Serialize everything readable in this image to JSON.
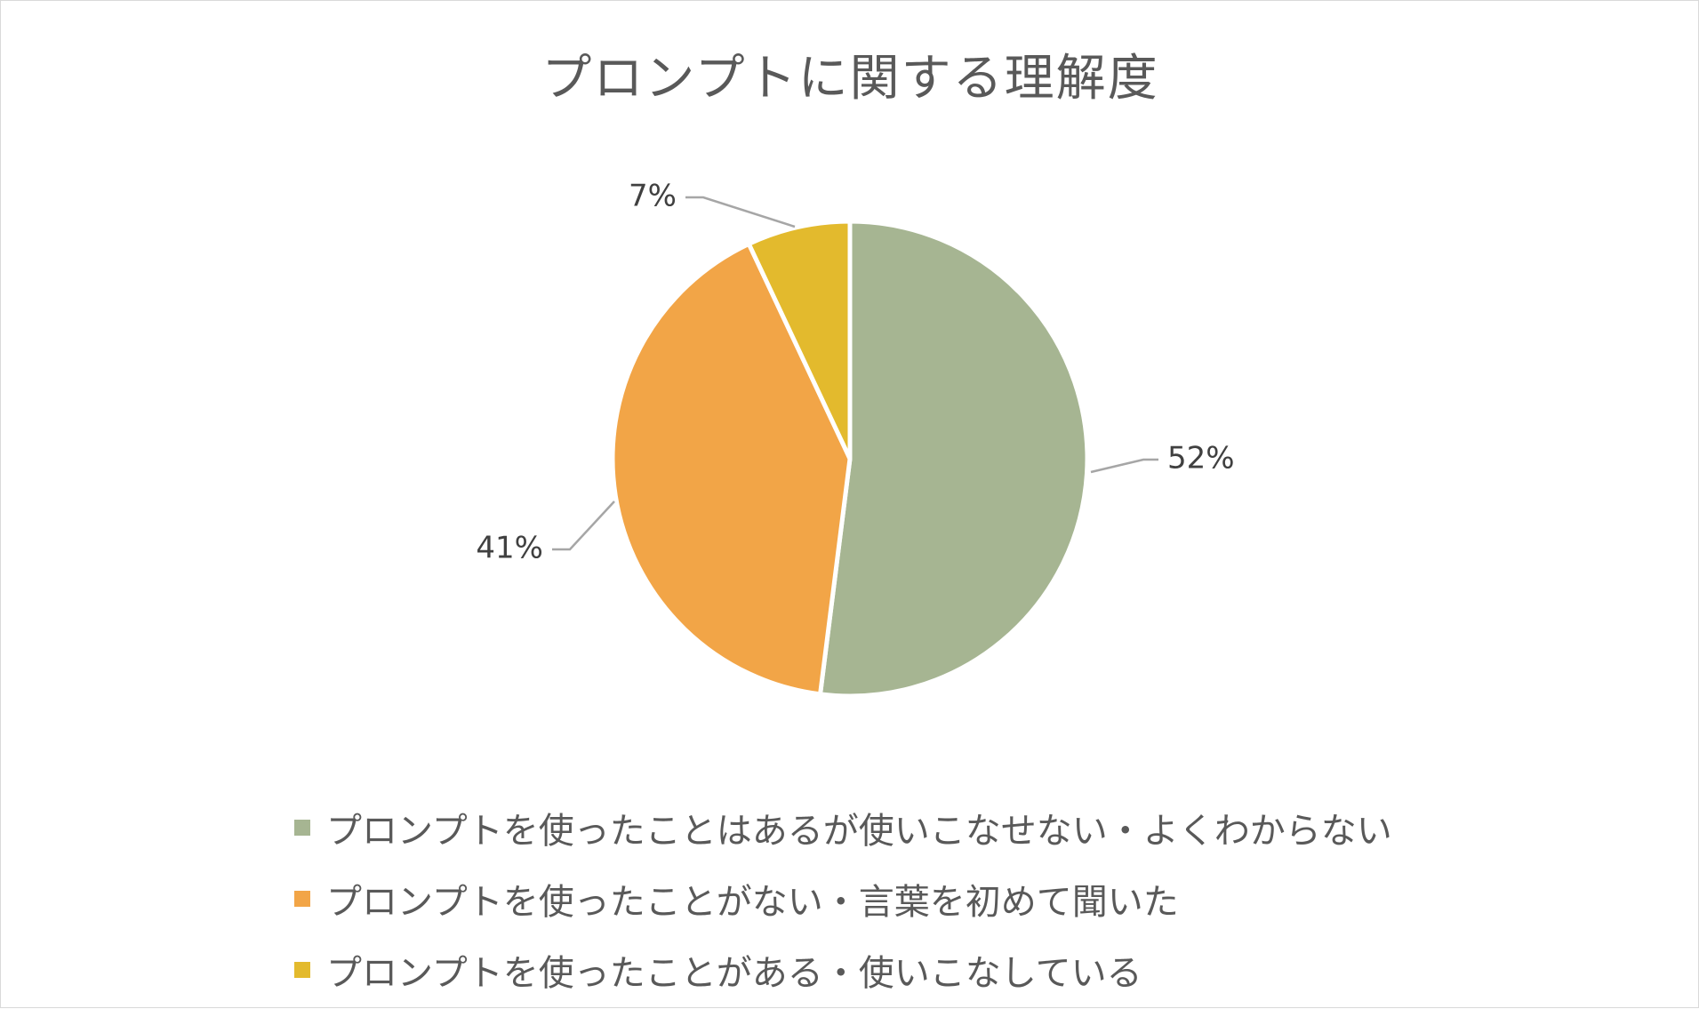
{
  "chart_data": {
    "type": "pie",
    "title": "プロンプトに関する理解度",
    "categories": [
      "プロンプトを使ったことはあるが使いこなせない・よくわからない",
      "プロンプトを使ったことがない・言葉を初めて聞いた",
      "プロンプトを使ったことがある・使いこなしている"
    ],
    "values": [
      52,
      41,
      7
    ],
    "data_labels": [
      "52%",
      "41%",
      "7%"
    ],
    "colors": [
      "#a6b592",
      "#f2a547",
      "#e3ba2d"
    ],
    "legend_position": "bottom",
    "start_angle_deg": 0,
    "direction": "clockwise"
  }
}
